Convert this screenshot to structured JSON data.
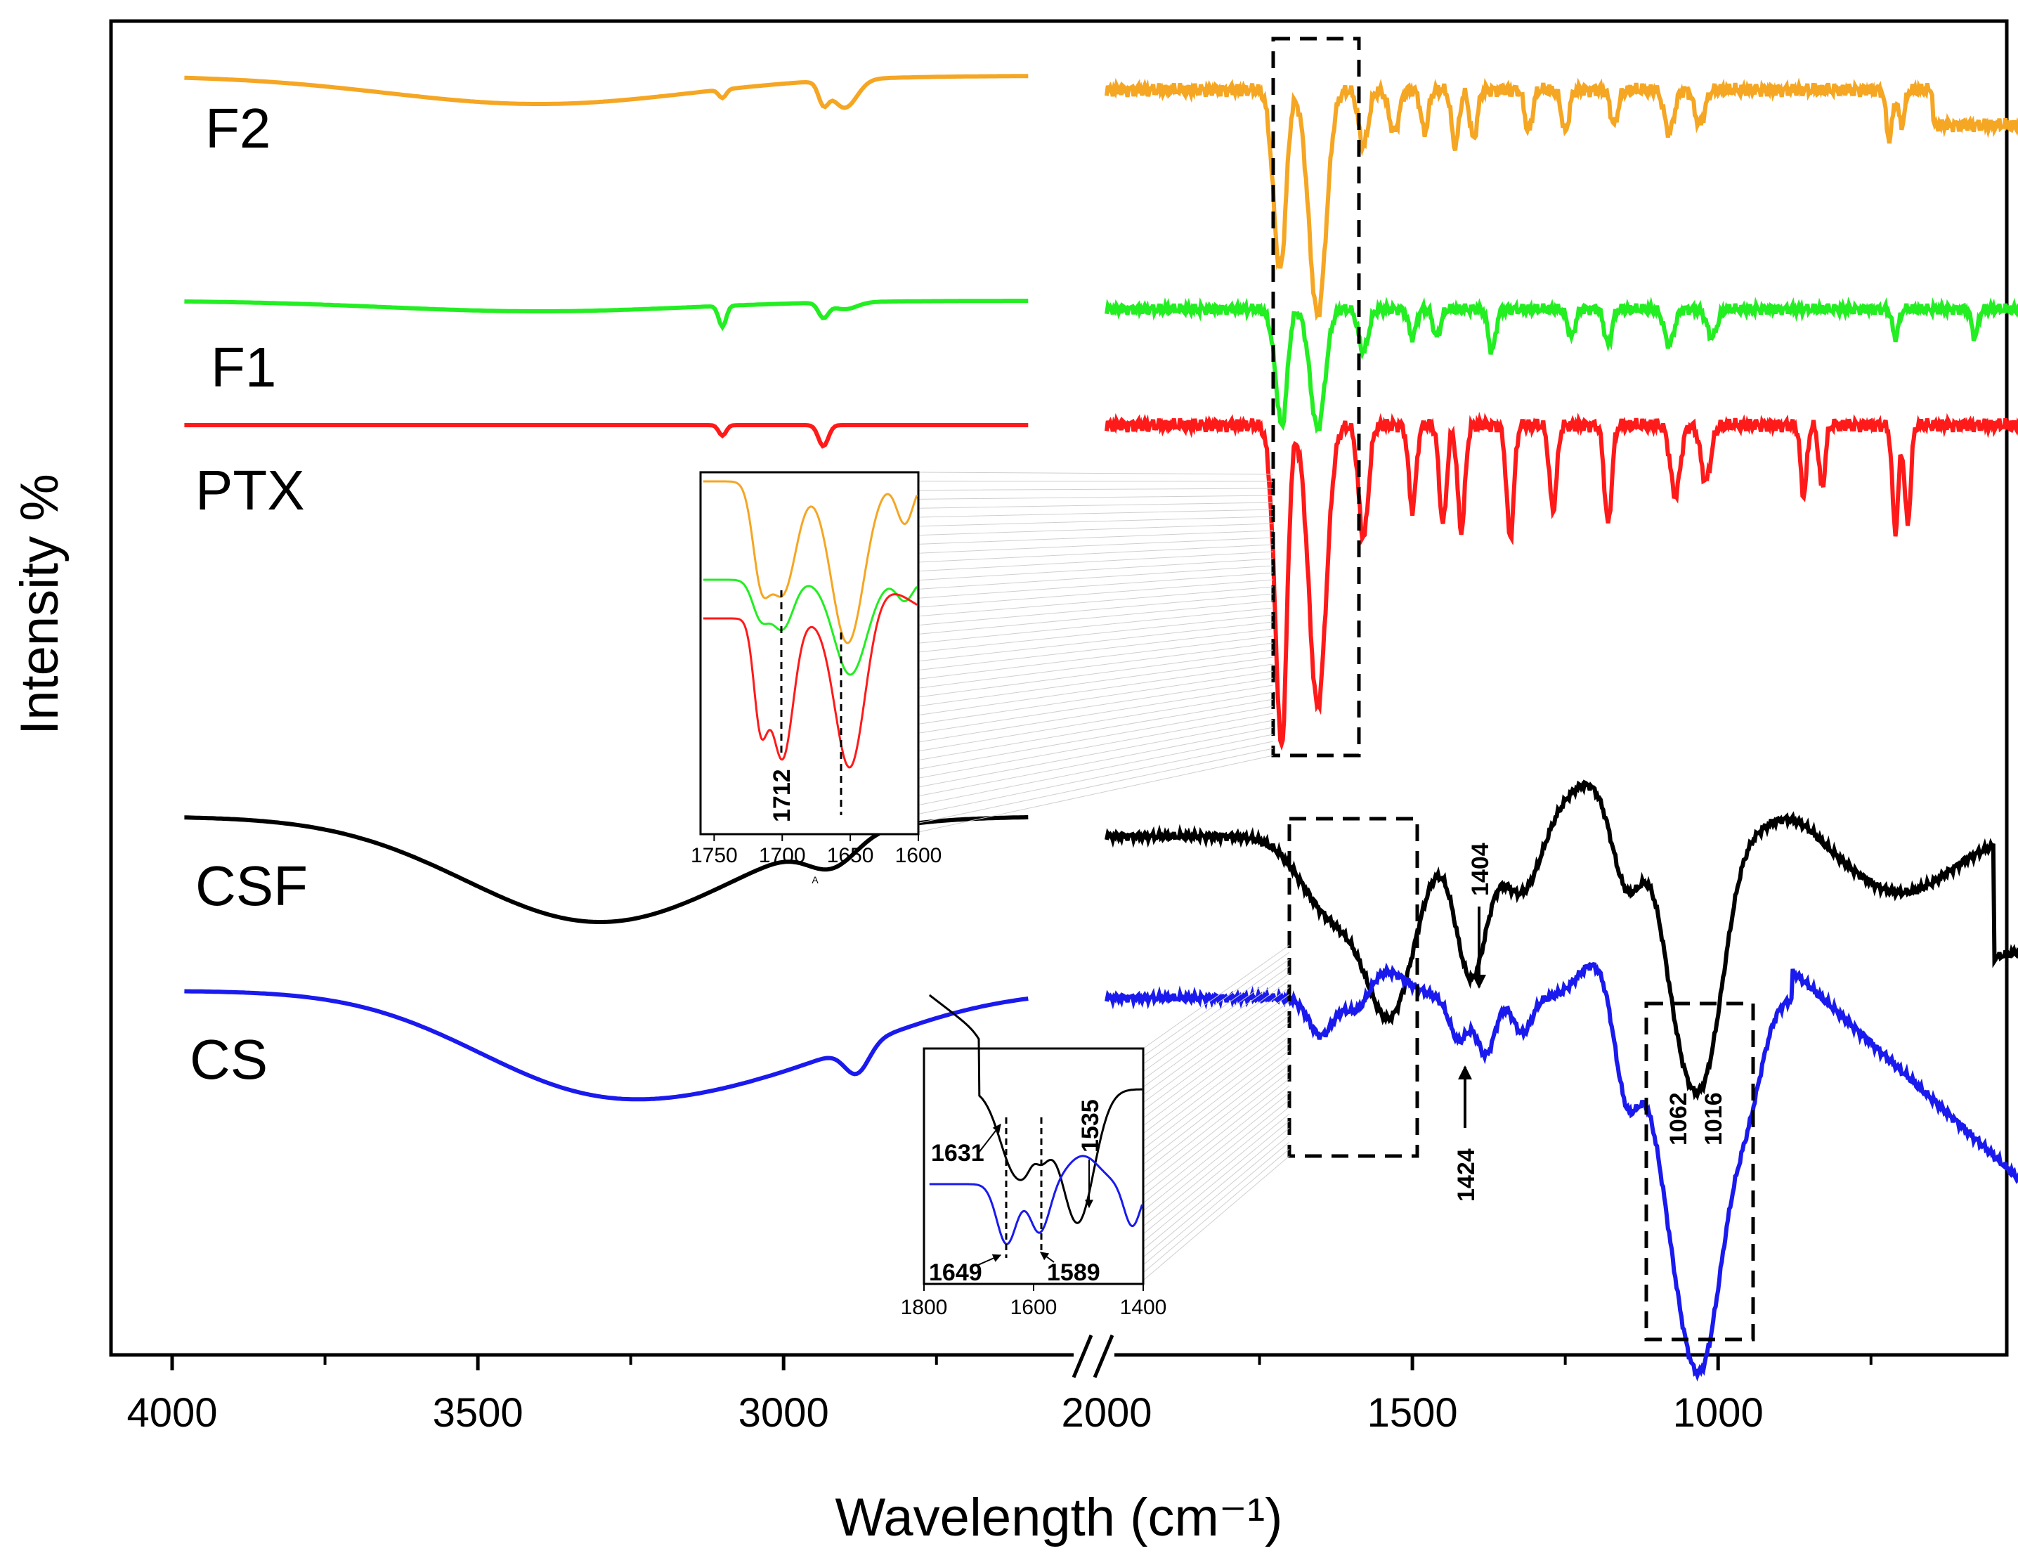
{
  "chart_data": {
    "type": "line",
    "title": "",
    "xlabel": "Wavelength (cm⁻¹)",
    "ylabel": "Intensity %",
    "xlim": [
      4000,
      450
    ],
    "x_break": [
      2600,
      2000
    ],
    "xticks": [
      "4000",
      "3500",
      "3000",
      "2000",
      "1500",
      "1000"
    ],
    "grid": false,
    "series": [
      {
        "name": "F2",
        "color": "#F5A623"
      },
      {
        "name": "F1",
        "color": "#22EE22"
      },
      {
        "name": "PTX",
        "color": "#FF1A1A"
      },
      {
        "name": "CSF",
        "color": "#000000"
      },
      {
        "name": "CS",
        "color": "#1A1AEE"
      }
    ],
    "annotations": [
      "1404",
      "1424",
      "1062",
      "1016"
    ],
    "insets": [
      {
        "name": "carbonyl region (F2, F1, PTX)",
        "xlim": [
          1760,
          1600
        ],
        "xticks": [
          "1750",
          "1700",
          "1650",
          "1600"
        ],
        "xlabel": "A",
        "annotations": [
          "1712"
        ]
      },
      {
        "name": "amide region (CSF, CS)",
        "xlim": [
          1800,
          1400
        ],
        "xticks": [
          "1800",
          "1600",
          "1400"
        ],
        "annotations": [
          "1631",
          "1535",
          "1649",
          "1589"
        ]
      }
    ]
  }
}
